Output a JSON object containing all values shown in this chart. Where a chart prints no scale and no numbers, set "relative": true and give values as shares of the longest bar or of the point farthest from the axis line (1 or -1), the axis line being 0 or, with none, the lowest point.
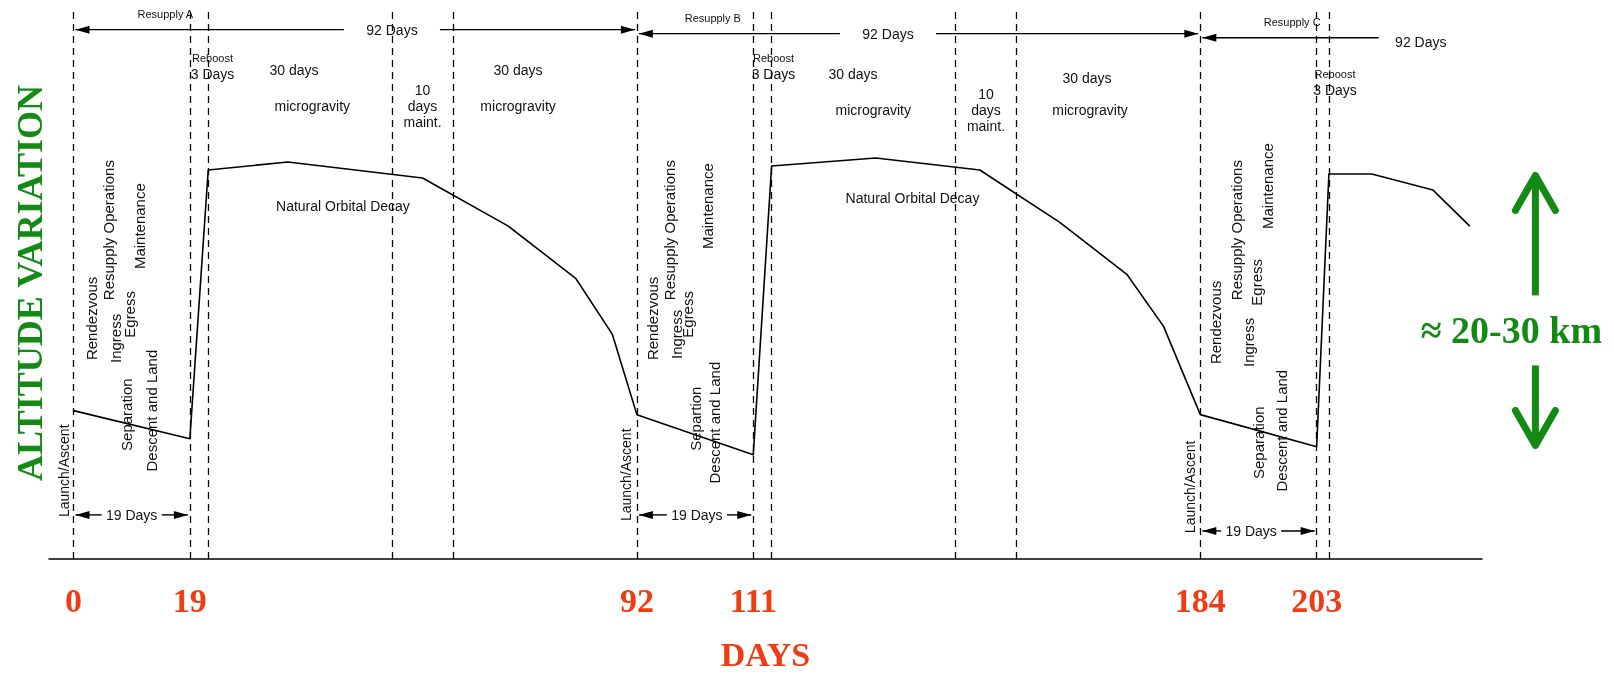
{
  "chart_data": {
    "type": "line",
    "relative": true,
    "xlabel": "DAYS",
    "ylabel": "ALTITUDE VARIATION",
    "xlim": [
      -4,
      230
    ],
    "xticks": [
      0,
      19,
      92,
      111,
      184,
      203
    ],
    "series": [
      {
        "color": "#000000",
        "x": [
          0,
          19,
          22,
          35,
          57,
          71,
          82,
          88,
          92,
          111,
          114,
          131,
          148,
          161,
          172,
          178,
          184,
          203,
          205,
          212,
          222,
          228
        ],
        "values": [
          0.37,
          0.3,
          0.97,
          0.99,
          0.95,
          0.83,
          0.7,
          0.56,
          0.36,
          0.26,
          0.98,
          1.0,
          0.97,
          0.84,
          0.71,
          0.58,
          0.36,
          0.28,
          0.96,
          0.96,
          0.92,
          0.83
        ]
      }
    ],
    "ref_lines": [
      {
        "axis": "x",
        "value": 0,
        "color": "#000000",
        "line_style": "dashed"
      },
      {
        "axis": "x",
        "value": 19,
        "color": "#000000",
        "line_style": "dashed"
      },
      {
        "axis": "x",
        "value": 22,
        "color": "#000000",
        "line_style": "dashed"
      },
      {
        "axis": "x",
        "value": 52,
        "color": "#000000",
        "line_style": "dashed"
      },
      {
        "axis": "x",
        "value": 62,
        "color": "#000000",
        "line_style": "dashed"
      },
      {
        "axis": "x",
        "value": 92,
        "color": "#000000",
        "line_style": "dashed"
      },
      {
        "axis": "x",
        "value": 111,
        "color": "#000000",
        "line_style": "dashed"
      },
      {
        "axis": "x",
        "value": 114,
        "color": "#000000",
        "line_style": "dashed"
      },
      {
        "axis": "x",
        "value": 144,
        "color": "#000000",
        "line_style": "dashed"
      },
      {
        "axis": "x",
        "value": 154,
        "color": "#000000",
        "line_style": "dashed"
      },
      {
        "axis": "x",
        "value": 184,
        "color": "#000000",
        "line_style": "dashed"
      },
      {
        "axis": "x",
        "value": 203,
        "color": "#000000",
        "line_style": "dashed"
      },
      {
        "axis": "x",
        "value": 205,
        "color": "#000000",
        "line_style": "dashed"
      }
    ],
    "annotations": [
      "Resupply A",
      "92 Days",
      "Reboost",
      "3 Days",
      "30 days",
      "microgravity",
      "10\ndays\nmaint.",
      "30 days",
      "microgravity",
      "Natural Orbital Decay",
      "Rendezvous",
      "Resupply Operations",
      "Ingress",
      "Egress",
      "Maintenance",
      "Separation",
      "Descent and Land",
      "Launch/Ascent",
      "19 Days",
      "Resupply B",
      "92 Days",
      "Reboost",
      "3 Days",
      "30 days",
      "microgravity",
      "10\ndays\nmaint.",
      "30 days",
      "microgravity",
      "Natural Orbital Decay",
      "Rendezvous",
      "Resupply Operations",
      "Ingress",
      "Egress",
      "Maintenance",
      "Separtion",
      "Descent and Land",
      "Launch/Ascent",
      "19 Days",
      "Resupply C",
      "92 Days",
      "Reboost",
      "3 Days",
      "Rendezvous",
      "Resupply Operations",
      "Ingress",
      "Egress",
      "Maintenance",
      "Separation",
      "Descent and Land",
      "Launch/Ascent",
      "19 Days",
      "≈ 20-30 km"
    ]
  }
}
